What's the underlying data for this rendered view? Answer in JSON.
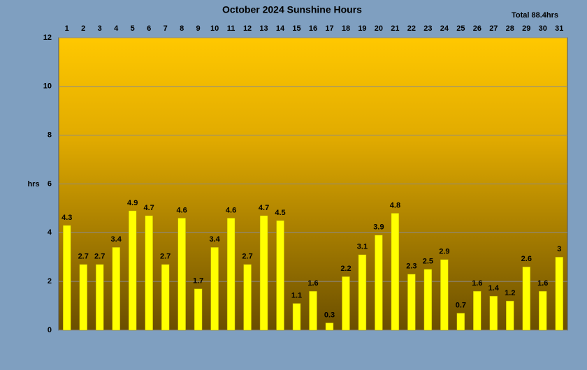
{
  "chart_data": {
    "type": "bar",
    "title": "October 2024 Sunshine Hours",
    "annotation": "Total 88.4hrs",
    "y_label": "hrs",
    "categories": [
      "1",
      "2",
      "3",
      "4",
      "5",
      "6",
      "7",
      "8",
      "9",
      "10",
      "11",
      "12",
      "13",
      "14",
      "15",
      "16",
      "17",
      "18",
      "19",
      "20",
      "21",
      "22",
      "23",
      "24",
      "25",
      "26",
      "27",
      "28",
      "29",
      "30",
      "31"
    ],
    "values": [
      4.3,
      2.7,
      2.7,
      3.4,
      4.9,
      4.7,
      2.7,
      4.6,
      1.7,
      3.4,
      4.6,
      2.7,
      4.7,
      4.5,
      1.1,
      1.6,
      0.3,
      2.2,
      3.1,
      3.9,
      4.8,
      2.3,
      2.5,
      2.9,
      0.7,
      1.6,
      1.4,
      1.2,
      2.6,
      1.6,
      3
    ],
    "color": "#ffff00",
    "ylim": [
      0,
      12
    ],
    "yticks": [
      0,
      2,
      4,
      6,
      8,
      10,
      12
    ],
    "grid": true
  }
}
